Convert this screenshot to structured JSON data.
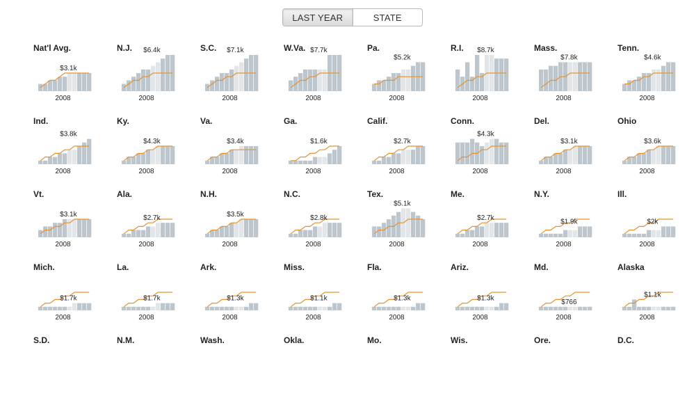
{
  "toggle": {
    "options": [
      "LAST YEAR",
      "STATE"
    ],
    "active": 0
  },
  "year_label": "2008",
  "colors": {
    "bar": "#bcc6cc",
    "bar_highlight": "#e3e6e8",
    "line": "#e8922f",
    "text": "#222222"
  },
  "chart_data": [
    {
      "type": "bar",
      "title": "Nat'l Avg.",
      "value_label": "$3.1k",
      "bars": [
        2,
        2,
        3,
        3,
        4,
        4,
        5,
        5,
        5,
        5,
        5
      ],
      "line": [
        1,
        2,
        3,
        3,
        4,
        5,
        5,
        5,
        5,
        5,
        5
      ]
    },
    {
      "type": "bar",
      "title": "N.J.",
      "value_label": "$6.4k",
      "bars": [
        2,
        3,
        4,
        5,
        6,
        6,
        7,
        8,
        9,
        10,
        10
      ],
      "line": [
        1,
        2,
        3,
        3,
        4,
        4,
        5,
        5,
        5,
        5,
        5
      ]
    },
    {
      "type": "bar",
      "title": "S.C.",
      "value_label": "$7.1k",
      "bars": [
        2,
        3,
        4,
        5,
        5,
        6,
        7,
        8,
        9,
        10,
        10
      ],
      "line": [
        1,
        2,
        3,
        3,
        4,
        4,
        5,
        5,
        5,
        5,
        5
      ]
    },
    {
      "type": "bar",
      "title": "W.Va.",
      "value_label": "$7.7k",
      "bars": [
        3,
        4,
        5,
        6,
        6,
        6,
        6,
        6,
        10,
        10,
        10
      ],
      "line": [
        1,
        2,
        3,
        3,
        4,
        4,
        5,
        5,
        5,
        5,
        5
      ]
    },
    {
      "type": "bar",
      "title": "Pa.",
      "value_label": "$5.2k",
      "bars": [
        2,
        3,
        3,
        4,
        5,
        5,
        6,
        6,
        7,
        8,
        8
      ],
      "line": [
        2,
        2,
        3,
        3,
        3,
        4,
        4,
        4,
        4,
        4,
        4
      ]
    },
    {
      "type": "bar",
      "title": "R.I.",
      "value_label": "$8.7k",
      "bars": [
        6,
        4,
        8,
        4,
        10,
        5,
        10,
        10,
        9,
        9,
        9
      ],
      "line": [
        1,
        2,
        3,
        3,
        4,
        4,
        5,
        5,
        5,
        5,
        5
      ]
    },
    {
      "type": "bar",
      "title": "Mass.",
      "value_label": "$7.8k",
      "bars": [
        6,
        6,
        7,
        7,
        8,
        8,
        8,
        8,
        8,
        8,
        8
      ],
      "line": [
        1,
        2,
        3,
        3,
        4,
        4,
        5,
        5,
        5,
        5,
        5
      ]
    },
    {
      "type": "bar",
      "title": "Tenn.",
      "value_label": "$4.6k",
      "bars": [
        2,
        3,
        3,
        4,
        5,
        5,
        6,
        6,
        7,
        8,
        8
      ],
      "line": [
        2,
        2,
        3,
        3,
        4,
        4,
        5,
        5,
        5,
        5,
        5
      ]
    },
    {
      "type": "bar",
      "title": "Ind.",
      "value_label": "$3.8k",
      "bars": [
        1,
        1,
        2,
        2,
        3,
        3,
        4,
        4,
        5,
        6,
        7
      ],
      "line": [
        1,
        2,
        2,
        3,
        3,
        4,
        4,
        5,
        5,
        5,
        5
      ]
    },
    {
      "type": "bar",
      "title": "Ky.",
      "value_label": "$4.3k",
      "bars": [
        1,
        2,
        2,
        3,
        3,
        4,
        4,
        5,
        5,
        5,
        5
      ],
      "line": [
        1,
        2,
        2,
        3,
        3,
        4,
        4,
        5,
        5,
        5,
        5
      ]
    },
    {
      "type": "bar",
      "title": "Va.",
      "value_label": "$3.4k",
      "bars": [
        1,
        2,
        2,
        3,
        3,
        4,
        4,
        5,
        5,
        5,
        5
      ],
      "line": [
        1,
        2,
        2,
        3,
        3,
        4,
        4,
        4,
        4,
        4,
        4
      ]
    },
    {
      "type": "bar",
      "title": "Ga.",
      "value_label": "$1.6k",
      "bars": [
        1,
        1,
        1,
        1,
        1,
        2,
        2,
        2,
        3,
        4,
        5
      ],
      "line": [
        1,
        1,
        2,
        2,
        3,
        3,
        4,
        4,
        5,
        5,
        5
      ]
    },
    {
      "type": "bar",
      "title": "Calif.",
      "value_label": "$2.7k",
      "bars": [
        1,
        1,
        2,
        2,
        3,
        3,
        4,
        4,
        4,
        5,
        5
      ],
      "line": [
        1,
        2,
        2,
        3,
        3,
        4,
        4,
        5,
        5,
        5,
        5
      ]
    },
    {
      "type": "bar",
      "title": "Conn.",
      "value_label": "$4.3k",
      "bars": [
        6,
        6,
        6,
        7,
        6,
        5,
        6,
        7,
        7,
        6,
        6
      ],
      "line": [
        1,
        2,
        2,
        3,
        3,
        4,
        4,
        5,
        5,
        5,
        5
      ]
    },
    {
      "type": "bar",
      "title": "Del.",
      "value_label": "$3.1k",
      "bars": [
        1,
        2,
        2,
        3,
        3,
        4,
        4,
        5,
        5,
        5,
        5
      ],
      "line": [
        1,
        2,
        2,
        3,
        3,
        4,
        4,
        5,
        5,
        5,
        5
      ]
    },
    {
      "type": "bar",
      "title": "Ohio",
      "value_label": "$3.6k",
      "bars": [
        1,
        2,
        2,
        3,
        3,
        4,
        4,
        5,
        5,
        5,
        5
      ],
      "line": [
        1,
        2,
        2,
        3,
        3,
        4,
        4,
        5,
        5,
        5,
        5
      ]
    },
    {
      "type": "bar",
      "title": "Vt.",
      "value_label": "$3.1k",
      "bars": [
        2,
        3,
        3,
        4,
        4,
        5,
        5,
        5,
        5,
        5,
        5
      ],
      "line": [
        1,
        2,
        2,
        3,
        3,
        4,
        4,
        5,
        5,
        5,
        5
      ]
    },
    {
      "type": "bar",
      "title": "Ala.",
      "value_label": "$2.7k",
      "bars": [
        1,
        1,
        2,
        2,
        2,
        3,
        3,
        4,
        4,
        4,
        4
      ],
      "line": [
        1,
        2,
        2,
        3,
        3,
        4,
        4,
        5,
        5,
        5,
        5
      ]
    },
    {
      "type": "bar",
      "title": "N.H.",
      "value_label": "$3.5k",
      "bars": [
        1,
        2,
        2,
        3,
        3,
        4,
        4,
        5,
        5,
        5,
        5
      ],
      "line": [
        1,
        2,
        2,
        3,
        3,
        4,
        4,
        5,
        5,
        5,
        5
      ]
    },
    {
      "type": "bar",
      "title": "N.C.",
      "value_label": "$2.8k",
      "bars": [
        1,
        1,
        2,
        2,
        2,
        3,
        3,
        4,
        4,
        4,
        4
      ],
      "line": [
        1,
        2,
        2,
        3,
        3,
        4,
        4,
        5,
        5,
        5,
        5
      ]
    },
    {
      "type": "bar",
      "title": "Tex.",
      "value_label": "$5.1k",
      "bars": [
        3,
        3,
        4,
        5,
        6,
        7,
        8,
        8,
        7,
        6,
        5
      ],
      "line": [
        1,
        2,
        2,
        3,
        3,
        4,
        4,
        5,
        5,
        5,
        5
      ]
    },
    {
      "type": "bar",
      "title": "Me.",
      "value_label": "$2.7k",
      "bars": [
        1,
        1,
        2,
        2,
        3,
        3,
        4,
        4,
        4,
        4,
        4
      ],
      "line": [
        1,
        2,
        2,
        3,
        3,
        4,
        4,
        5,
        5,
        5,
        5
      ]
    },
    {
      "type": "bar",
      "title": "N.Y.",
      "value_label": "$1.9k",
      "bars": [
        1,
        1,
        1,
        1,
        1,
        2,
        2,
        2,
        3,
        3,
        3
      ],
      "line": [
        1,
        2,
        2,
        3,
        3,
        4,
        4,
        5,
        5,
        5,
        5
      ]
    },
    {
      "type": "bar",
      "title": "Ill.",
      "value_label": "$2k",
      "bars": [
        1,
        1,
        1,
        1,
        1,
        2,
        2,
        2,
        3,
        3,
        3
      ],
      "line": [
        1,
        2,
        2,
        3,
        3,
        4,
        4,
        5,
        5,
        5,
        5
      ]
    },
    {
      "type": "bar",
      "title": "Mich.",
      "value_label": "$1.7k",
      "bars": [
        1,
        1,
        1,
        1,
        1,
        1,
        1,
        2,
        2,
        2,
        2
      ],
      "line": [
        1,
        2,
        2,
        3,
        3,
        4,
        4,
        5,
        5,
        5,
        5
      ]
    },
    {
      "type": "bar",
      "title": "La.",
      "value_label": "$1.7k",
      "bars": [
        1,
        1,
        1,
        1,
        1,
        1,
        1,
        2,
        2,
        2,
        2
      ],
      "line": [
        1,
        2,
        2,
        3,
        3,
        4,
        4,
        5,
        5,
        5,
        5
      ]
    },
    {
      "type": "bar",
      "title": "Ark.",
      "value_label": "$1.3k",
      "bars": [
        1,
        1,
        1,
        1,
        1,
        1,
        1,
        1,
        1,
        2,
        2
      ],
      "line": [
        1,
        2,
        2,
        3,
        3,
        4,
        4,
        5,
        5,
        5,
        5
      ]
    },
    {
      "type": "bar",
      "title": "Miss.",
      "value_label": "$1.1k",
      "bars": [
        1,
        1,
        1,
        1,
        1,
        1,
        1,
        1,
        1,
        2,
        2
      ],
      "line": [
        1,
        2,
        2,
        3,
        3,
        4,
        4,
        5,
        5,
        5,
        5
      ]
    },
    {
      "type": "bar",
      "title": "Fla.",
      "value_label": "$1.3k",
      "bars": [
        1,
        1,
        1,
        1,
        1,
        1,
        1,
        1,
        1,
        2,
        2
      ],
      "line": [
        1,
        2,
        2,
        3,
        3,
        4,
        4,
        5,
        5,
        5,
        5
      ]
    },
    {
      "type": "bar",
      "title": "Ariz.",
      "value_label": "$1.3k",
      "bars": [
        1,
        1,
        1,
        1,
        1,
        1,
        1,
        1,
        1,
        2,
        2
      ],
      "line": [
        1,
        2,
        2,
        3,
        3,
        4,
        4,
        5,
        5,
        5,
        5
      ]
    },
    {
      "type": "bar",
      "title": "Md.",
      "value_label": "$766",
      "bars": [
        1,
        1,
        1,
        1,
        1,
        1,
        1,
        1,
        1,
        1,
        1
      ],
      "line": [
        1,
        2,
        2,
        3,
        3,
        4,
        4,
        5,
        5,
        5,
        5
      ]
    },
    {
      "type": "bar",
      "title": "Alaska",
      "value_label": "$1.1k",
      "bars": [
        1,
        1,
        3,
        1,
        1,
        1,
        1,
        1,
        1,
        1,
        1
      ],
      "line": [
        1,
        2,
        2,
        3,
        3,
        4,
        4,
        5,
        5,
        5,
        5
      ]
    },
    {
      "type": "bar",
      "title": "S.D.",
      "value_label": "",
      "bars": [],
      "line": []
    },
    {
      "type": "bar",
      "title": "N.M.",
      "value_label": "",
      "bars": [],
      "line": []
    },
    {
      "type": "bar",
      "title": "Wash.",
      "value_label": "",
      "bars": [],
      "line": []
    },
    {
      "type": "bar",
      "title": "Okla.",
      "value_label": "",
      "bars": [],
      "line": []
    },
    {
      "type": "bar",
      "title": "Mo.",
      "value_label": "",
      "bars": [],
      "line": []
    },
    {
      "type": "bar",
      "title": "Wis.",
      "value_label": "",
      "bars": [],
      "line": []
    },
    {
      "type": "bar",
      "title": "Ore.",
      "value_label": "",
      "bars": [],
      "line": []
    },
    {
      "type": "bar",
      "title": "D.C.",
      "value_label": "",
      "bars": [],
      "line": []
    }
  ]
}
